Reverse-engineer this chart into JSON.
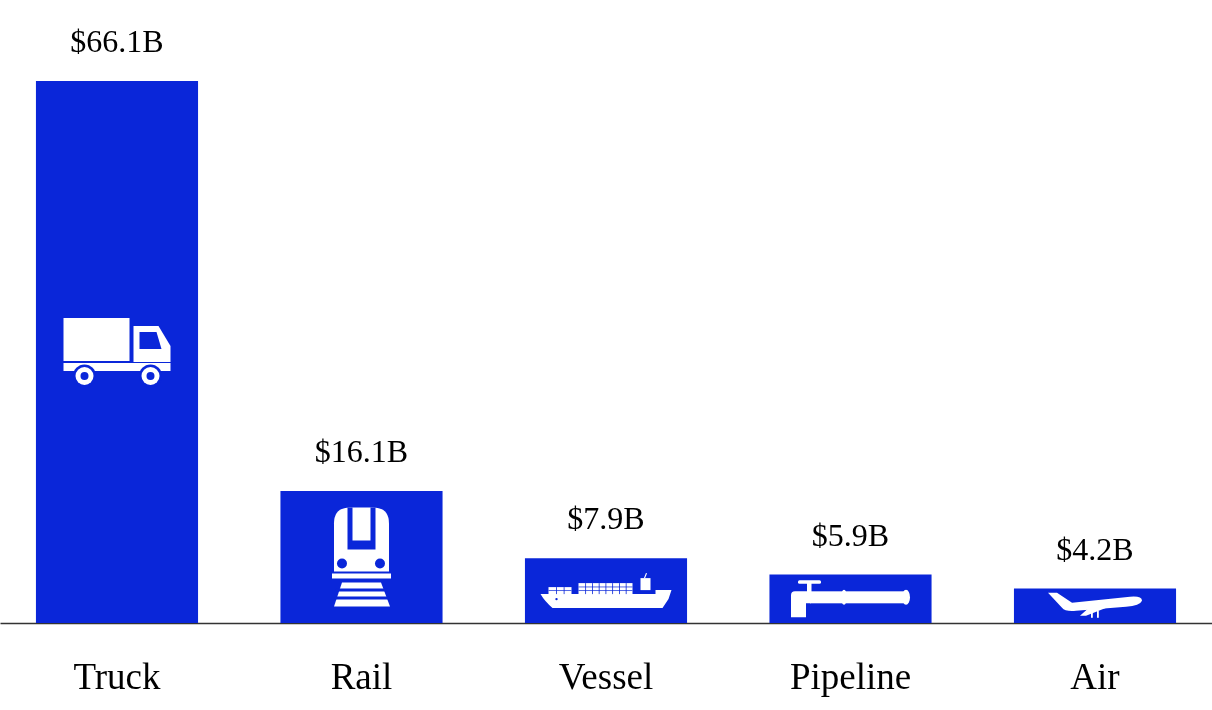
{
  "chart_data": {
    "type": "bar",
    "categories": [
      "Truck",
      "Rail",
      "Vessel",
      "Pipeline",
      "Air"
    ],
    "values": [
      66.1,
      16.1,
      7.9,
      5.9,
      4.2
    ],
    "value_labels": [
      "$66.1B",
      "$16.1B",
      "$7.9B",
      "$5.9B",
      "$4.2B"
    ],
    "color": "#0a26d9"
  }
}
